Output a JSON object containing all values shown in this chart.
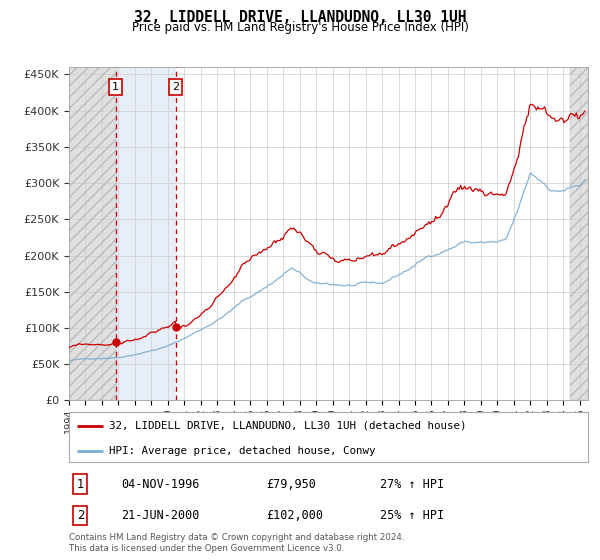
{
  "title": "32, LIDDELL DRIVE, LLANDUDNO, LL30 1UH",
  "subtitle": "Price paid vs. HM Land Registry's House Price Index (HPI)",
  "ylim": [
    0,
    460000
  ],
  "yticks": [
    0,
    50000,
    100000,
    150000,
    200000,
    250000,
    300000,
    350000,
    400000,
    450000
  ],
  "ytick_labels": [
    "£0",
    "£50K",
    "£100K",
    "£150K",
    "£200K",
    "£250K",
    "£300K",
    "£350K",
    "£400K",
    "£450K"
  ],
  "xlim_start": 1994.0,
  "xlim_end": 2025.5,
  "legend_line1": "32, LIDDELL DRIVE, LLANDUDNO, LL30 1UH (detached house)",
  "legend_line2": "HPI: Average price, detached house, Conwy",
  "transaction1_date": "04-NOV-1996",
  "transaction1_price": "£79,950",
  "transaction1_hpi": "27% ↑ HPI",
  "transaction1_year": 1996.83,
  "transaction1_value": 79950,
  "transaction2_date": "21-JUN-2000",
  "transaction2_price": "£102,000",
  "transaction2_hpi": "25% ↑ HPI",
  "transaction2_year": 2000.47,
  "transaction2_value": 102000,
  "red_line_color": "#cc0000",
  "blue_line_color": "#7aabcf",
  "footer": "Contains HM Land Registry data © Crown copyright and database right 2024.\nThis data is licensed under the Open Government Licence v3.0."
}
